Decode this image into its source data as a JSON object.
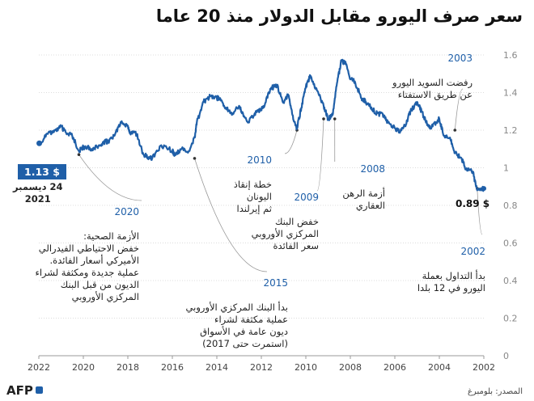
{
  "title": "سعر صرف اليورو مقابل الدولار منذ 20 عاما",
  "source": "المصدر: بلومبرغ",
  "logo": "AFP",
  "colors": {
    "line": "#1f5fa8",
    "accent": "#1f5fa8",
    "grid": "#dcdcdc",
    "axis": "#999999"
  },
  "start_point": {
    "value_label": "1.13 $",
    "date_line1": "24 ديسمبر",
    "date_line2": "2021"
  },
  "end_point": {
    "value_label": "0.89 $"
  },
  "annotations": [
    {
      "id": "2003",
      "year": "2003",
      "text": "رفضت السويد اليورو\nعن طريق الاستفتاء"
    },
    {
      "id": "2008",
      "year": "2008",
      "text": "أزمة الرهن\nالعقاري"
    },
    {
      "id": "2009",
      "year": "2009",
      "text": "خفض البنك\nالمركزي الأوروبي\nسعر الفائدة"
    },
    {
      "id": "2010",
      "year": "2010",
      "text": "خطة إنقاذ\nاليونان\nثم إيرلندا"
    },
    {
      "id": "2002",
      "year": "2002",
      "text": "بدأ التداول بعملة\nاليورو في 12 بلدا"
    },
    {
      "id": "2020",
      "year": "2020",
      "text": "الأزمة الصحية:\nخفض الاحتياطي الفيدرالي\nالأميركي أسعار الفائدة.\nعملية جديدة ومكثفة لشراء\nالديون من قبل البنك\nالمركزي الأوروبي"
    },
    {
      "id": "2015",
      "year": "2015",
      "text": "بدأ البنك المركزي الأوروبي\nعملية مكثفة لشراء\nديون عامة في الأسواق\n(استمرت حتى 2017)"
    }
  ],
  "chart_data": {
    "type": "line",
    "title": "سعر صرف اليورو مقابل الدولار منذ 20 عاما",
    "xlabel": "",
    "ylabel": "",
    "x_reversed": true,
    "xlim": [
      2002,
      2022
    ],
    "ylim": [
      0,
      1.6
    ],
    "x_ticks": [
      "2022",
      "2020",
      "2018",
      "2016",
      "2014",
      "2012",
      "2010",
      "2008",
      "2006",
      "2004",
      "2002"
    ],
    "y_ticks": [
      "0",
      "0.2",
      "0.4",
      "0.6",
      "0.8",
      "1",
      "1.2",
      "1.4",
      "1.6"
    ],
    "grid": true,
    "series": [
      {
        "x": [
          2002.0,
          2002.3,
          2002.5,
          2002.8,
          2003.0,
          2003.3,
          2003.5,
          2003.8,
          2004.0,
          2004.3,
          2004.5,
          2004.8,
          2005.0,
          2005.3,
          2005.5,
          2005.8,
          2006.0,
          2006.3,
          2006.5,
          2006.8,
          2007.0,
          2007.3,
          2007.5,
          2007.8,
          2008.0,
          2008.2,
          2008.4,
          2008.6,
          2008.8,
          2009.0,
          2009.2,
          2009.5,
          2009.8,
          2010.0,
          2010.2,
          2010.4,
          2010.6,
          2010.8,
          2011.0,
          2011.3,
          2011.6,
          2011.9,
          2012.0,
          2012.3,
          2012.6,
          2012.9,
          2013.0,
          2013.3,
          2013.6,
          2013.9,
          2014.0,
          2014.3,
          2014.6,
          2014.9,
          2015.0,
          2015.3,
          2015.6,
          2015.9,
          2016.0,
          2016.5,
          2016.9,
          2017.0,
          2017.3,
          2017.6,
          2017.9,
          2018.0,
          2018.3,
          2018.6,
          2018.9,
          2019.0,
          2019.3,
          2019.6,
          2019.9,
          2020.0,
          2020.2,
          2020.5,
          2020.8,
          2021.0,
          2021.3,
          2021.6,
          2021.98
        ],
        "y": [
          0.89,
          0.88,
          0.98,
          0.99,
          1.05,
          1.08,
          1.15,
          1.17,
          1.26,
          1.22,
          1.22,
          1.3,
          1.35,
          1.3,
          1.23,
          1.19,
          1.21,
          1.24,
          1.28,
          1.29,
          1.31,
          1.35,
          1.37,
          1.46,
          1.47,
          1.55,
          1.57,
          1.45,
          1.28,
          1.26,
          1.33,
          1.41,
          1.49,
          1.43,
          1.32,
          1.21,
          1.28,
          1.39,
          1.35,
          1.44,
          1.42,
          1.32,
          1.31,
          1.29,
          1.24,
          1.3,
          1.33,
          1.29,
          1.32,
          1.37,
          1.37,
          1.38,
          1.35,
          1.24,
          1.16,
          1.08,
          1.1,
          1.07,
          1.09,
          1.12,
          1.05,
          1.05,
          1.07,
          1.18,
          1.19,
          1.22,
          1.24,
          1.17,
          1.14,
          1.14,
          1.12,
          1.1,
          1.11,
          1.11,
          1.09,
          1.17,
          1.19,
          1.22,
          1.2,
          1.18,
          1.13
        ]
      }
    ]
  }
}
